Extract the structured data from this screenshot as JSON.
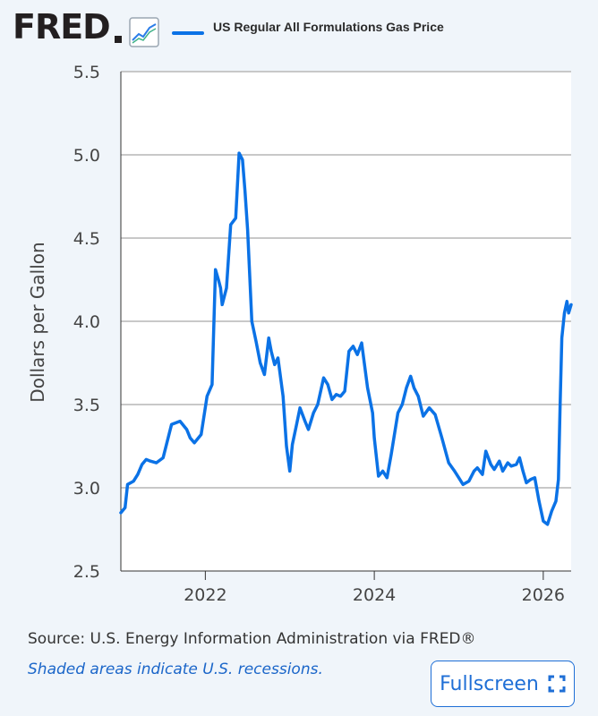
{
  "header": {
    "logo_text": "FRED",
    "graph_icon": "line-graph-icon",
    "series_label": "US Regular All Formulations Gas Price"
  },
  "colors": {
    "series": "#0b72e6",
    "grid": "#c8c8c8",
    "background": "#f0f5fa",
    "plot_background": "#ffffff",
    "link": "#1f6fd6"
  },
  "chart_data": {
    "type": "line",
    "title": "",
    "xlabel": "",
    "ylabel": "Dollars per Gallon",
    "ylim": [
      2.5,
      5.5
    ],
    "yticks": [
      2.5,
      3.0,
      3.5,
      4.0,
      4.5,
      5.0,
      5.5
    ],
    "ytick_labels": [
      "2.5",
      "3.0",
      "3.5",
      "4.0",
      "4.5",
      "5.0",
      "5.5"
    ],
    "xlim": [
      2021.0,
      2026.33
    ],
    "xticks": [
      2022,
      2024,
      2026
    ],
    "xtick_labels": [
      "2022",
      "2024",
      "2026"
    ],
    "grid": "horizontal",
    "series": [
      {
        "name": "US Regular All Formulations Gas Price",
        "x": [
          2021.0,
          2021.05,
          2021.08,
          2021.15,
          2021.2,
          2021.25,
          2021.3,
          2021.35,
          2021.42,
          2021.5,
          2021.6,
          2021.7,
          2021.78,
          2021.82,
          2021.87,
          2021.95,
          2022.02,
          2022.08,
          2022.12,
          2022.16,
          2022.18,
          2022.2,
          2022.25,
          2022.3,
          2022.36,
          2022.4,
          2022.44,
          2022.47,
          2022.5,
          2022.55,
          2022.6,
          2022.65,
          2022.7,
          2022.75,
          2022.78,
          2022.82,
          2022.86,
          2022.92,
          2022.96,
          2023.0,
          2023.03,
          2023.08,
          2023.12,
          2023.18,
          2023.22,
          2023.28,
          2023.33,
          2023.4,
          2023.45,
          2023.5,
          2023.55,
          2023.6,
          2023.65,
          2023.7,
          2023.75,
          2023.8,
          2023.85,
          2023.92,
          2023.98,
          2024.0,
          2024.05,
          2024.1,
          2024.15,
          2024.2,
          2024.28,
          2024.33,
          2024.38,
          2024.43,
          2024.47,
          2024.52,
          2024.58,
          2024.65,
          2024.72,
          2024.8,
          2024.88,
          2024.95,
          2025.0,
          2025.05,
          2025.12,
          2025.18,
          2025.22,
          2025.28,
          2025.32,
          2025.38,
          2025.42,
          2025.48,
          2025.52,
          2025.58,
          2025.62,
          2025.68,
          2025.72,
          2025.76,
          2025.8,
          2025.85,
          2025.9,
          2025.95,
          2026.0,
          2026.05,
          2026.1,
          2026.15,
          2026.18,
          2026.2,
          2026.22,
          2026.25,
          2026.28,
          2026.3,
          2026.33
        ],
        "y": [
          2.85,
          2.88,
          3.02,
          3.04,
          3.08,
          3.14,
          3.17,
          3.16,
          3.15,
          3.18,
          3.38,
          3.4,
          3.35,
          3.3,
          3.27,
          3.32,
          3.55,
          3.62,
          4.31,
          4.24,
          4.2,
          4.1,
          4.2,
          4.58,
          4.62,
          5.01,
          4.97,
          4.78,
          4.55,
          4.0,
          3.88,
          3.75,
          3.68,
          3.9,
          3.82,
          3.74,
          3.78,
          3.55,
          3.25,
          3.1,
          3.26,
          3.38,
          3.48,
          3.4,
          3.35,
          3.45,
          3.5,
          3.66,
          3.62,
          3.53,
          3.56,
          3.55,
          3.58,
          3.82,
          3.85,
          3.8,
          3.87,
          3.6,
          3.45,
          3.3,
          3.07,
          3.1,
          3.06,
          3.2,
          3.45,
          3.5,
          3.6,
          3.67,
          3.6,
          3.55,
          3.43,
          3.48,
          3.44,
          3.3,
          3.15,
          3.1,
          3.06,
          3.02,
          3.04,
          3.1,
          3.12,
          3.08,
          3.22,
          3.14,
          3.11,
          3.16,
          3.1,
          3.15,
          3.13,
          3.14,
          3.18,
          3.1,
          3.03,
          3.05,
          3.06,
          2.92,
          2.8,
          2.78,
          2.86,
          2.92,
          3.05,
          3.5,
          3.9,
          4.05,
          4.12,
          4.05,
          4.1
        ]
      }
    ]
  },
  "footer": {
    "source": "Source: U.S. Energy Information Administration via FRED®",
    "note": "Shaded areas indicate U.S. recessions.",
    "fullscreen_label": "Fullscreen",
    "fullscreen_icon": "expand-icon"
  }
}
